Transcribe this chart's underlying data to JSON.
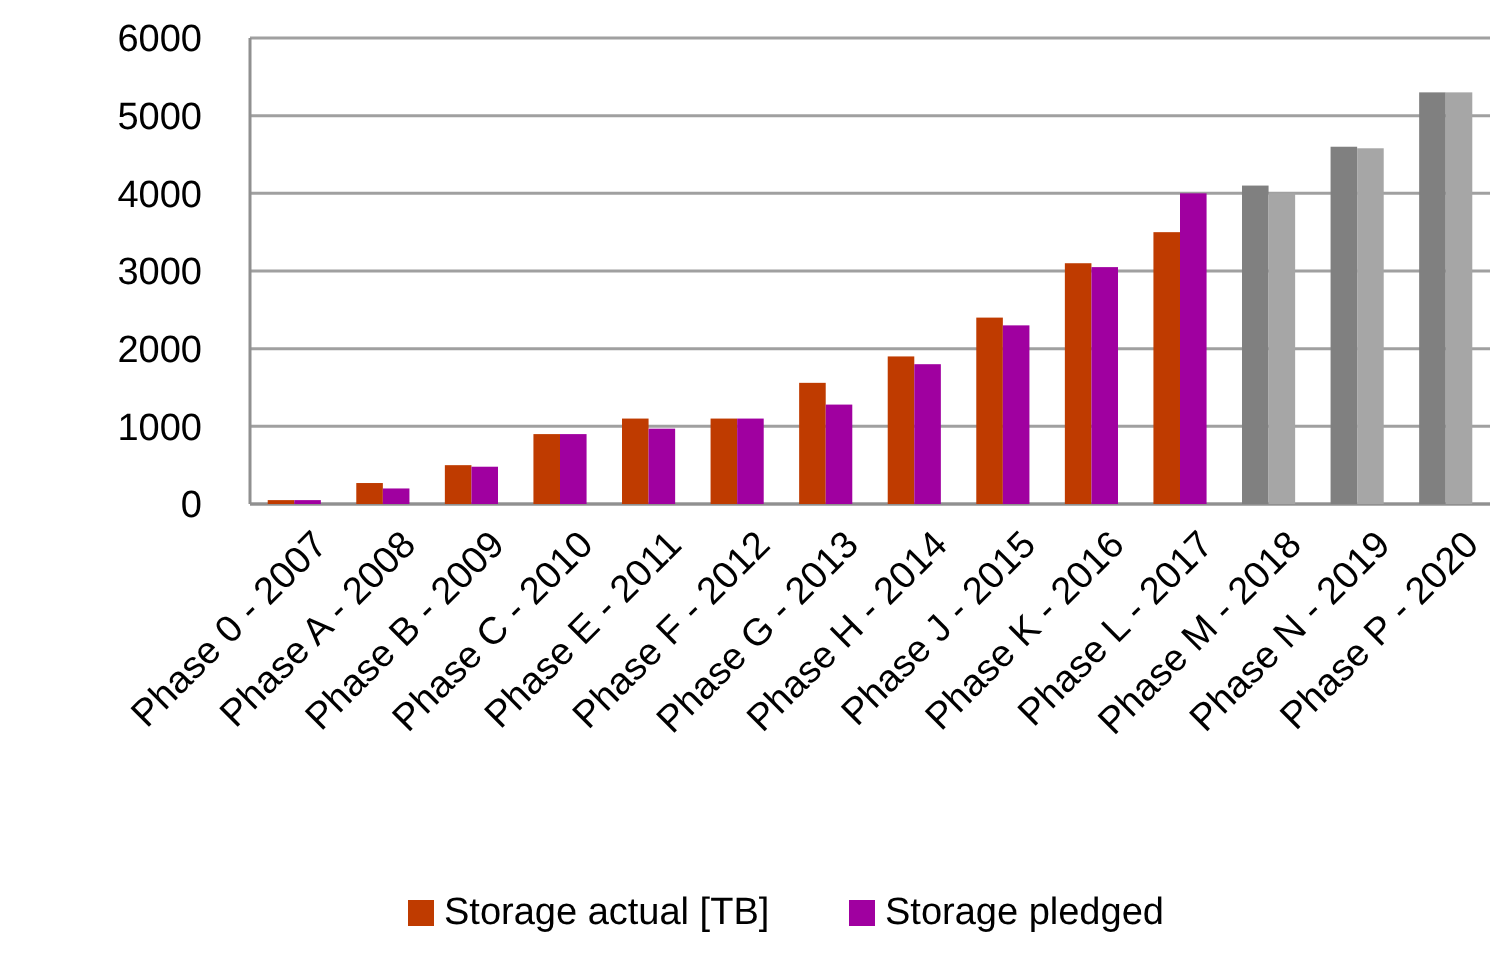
{
  "chart_data": {
    "type": "bar",
    "categories": [
      "Phase 0 - 2007",
      "Phase A - 2008",
      "Phase B - 2009",
      "Phase C - 2010",
      "Phase E - 2011",
      "Phase F - 2012",
      "Phase G - 2013",
      "Phase H - 2014",
      "Phase J - 2015",
      "Phase K - 2016",
      "Phase L - 2017",
      "Phase M - 2018",
      "Phase N - 2019",
      "Phase P - 2020"
    ],
    "series": [
      {
        "name": "Storage actual [TB]",
        "color": "#bf3b00",
        "colors": [
          "#bf3b00",
          "#bf3b00",
          "#bf3b00",
          "#bf3b00",
          "#bf3b00",
          "#bf3b00",
          "#bf3b00",
          "#bf3b00",
          "#bf3b00",
          "#bf3b00",
          "#bf3b00",
          "#808080",
          "#808080",
          "#808080"
        ],
        "values": [
          50,
          270,
          500,
          900,
          1100,
          1100,
          1560,
          1900,
          2400,
          3100,
          3500,
          4100,
          4600,
          5300
        ]
      },
      {
        "name": "Storage pledged",
        "color": "#a000a0",
        "colors": [
          "#a000a0",
          "#a000a0",
          "#a000a0",
          "#a000a0",
          "#a000a0",
          "#a000a0",
          "#a000a0",
          "#a000a0",
          "#a000a0",
          "#a000a0",
          "#a000a0",
          "#a6a6a6",
          "#a6a6a6",
          "#a6a6a6"
        ],
        "values": [
          50,
          200,
          480,
          900,
          970,
          1100,
          1280,
          1800,
          2300,
          3050,
          4000,
          4000,
          4580,
          5300
        ]
      }
    ],
    "ylim": [
      0,
      6000
    ],
    "yticks": [
      0,
      1000,
      2000,
      3000,
      4000,
      5000,
      6000
    ],
    "grid": "y",
    "legend": "bottom"
  }
}
